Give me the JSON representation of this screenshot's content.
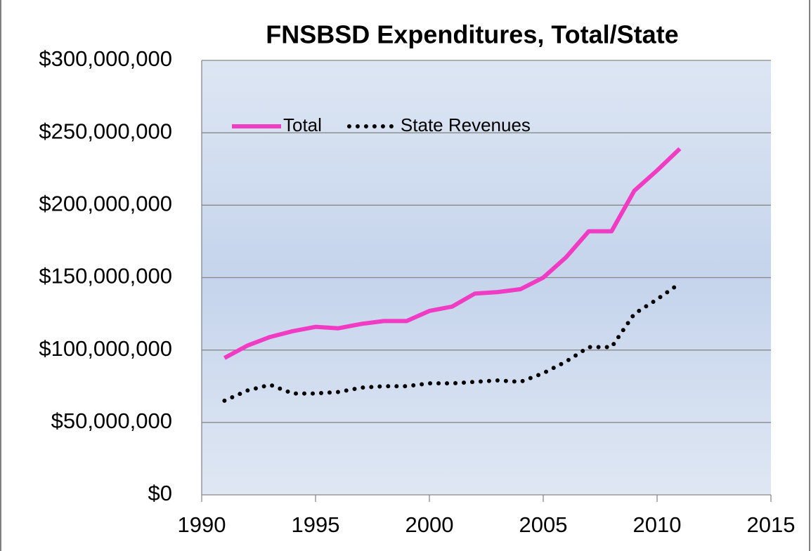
{
  "chart_data": {
    "type": "line",
    "title": "FNSBSD Expenditures, Total/State",
    "x": [
      1991,
      1992,
      1993,
      1994,
      1995,
      1996,
      1997,
      1998,
      1999,
      2000,
      2001,
      2002,
      2003,
      2004,
      2005,
      2006,
      2007,
      2008,
      2009,
      2010,
      2011
    ],
    "series": [
      {
        "name": "Total",
        "color": "#f03cc3",
        "style": "solid",
        "values": [
          94500000,
          103000000,
          109000000,
          113000000,
          116000000,
          115000000,
          118000000,
          120000000,
          120000000,
          127000000,
          130000000,
          139000000,
          140000000,
          142000000,
          150000000,
          164000000,
          182000000,
          182000000,
          210000000,
          224000000,
          239000000
        ]
      },
      {
        "name": "State Revenues",
        "color": "#000000",
        "style": "dotted",
        "values": [
          65000000,
          72000000,
          76000000,
          70000000,
          70000000,
          71000000,
          74000000,
          75000000,
          75000000,
          77000000,
          77000000,
          78000000,
          79000000,
          78000000,
          84000000,
          92000000,
          102000000,
          102000000,
          125000000,
          135000000,
          146000000
        ]
      }
    ],
    "xlim": [
      1990,
      2015
    ],
    "xticks": [
      1990,
      1995,
      2000,
      2005,
      2010,
      2015
    ],
    "ylim": [
      0,
      300000000
    ],
    "yticks": [
      {
        "value": 0,
        "label": "$0"
      },
      {
        "value": 50000000,
        "label": "$50,000,000"
      },
      {
        "value": 100000000,
        "label": "$100,000,000"
      },
      {
        "value": 150000000,
        "label": "$150,000,000"
      },
      {
        "value": 200000000,
        "label": "$200,000,000"
      },
      {
        "value": 250000000,
        "label": "$250,000,000"
      },
      {
        "value": 300000000,
        "label": "$300,000,000"
      }
    ],
    "grid": true,
    "legend": "upper left"
  }
}
